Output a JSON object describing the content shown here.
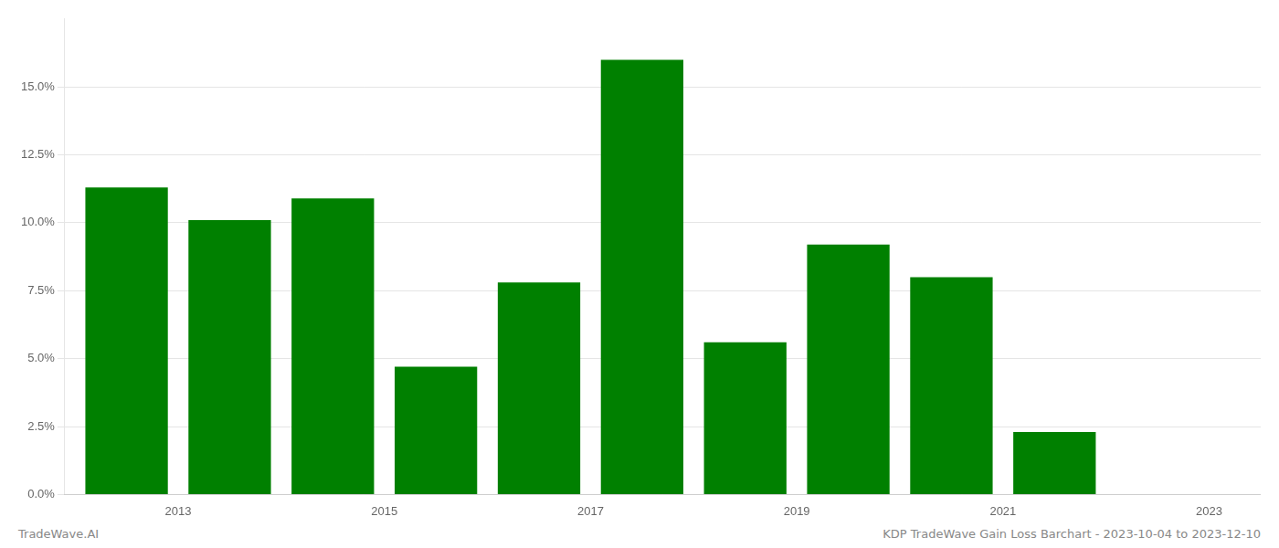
{
  "chart_data": {
    "type": "bar",
    "x": [
      2013,
      2014,
      2015,
      2016,
      2017,
      2018,
      2019,
      2020,
      2021,
      2022,
      2023
    ],
    "values": [
      0.113,
      0.101,
      0.109,
      0.047,
      0.078,
      0.16,
      0.056,
      0.092,
      0.08,
      0.023,
      0.0
    ],
    "color": "#008000",
    "xlim": [
      2012.4,
      2024.0
    ],
    "xticks": [
      {
        "value": 2013.5,
        "label": "2013"
      },
      {
        "value": 2015.5,
        "label": "2015"
      },
      {
        "value": 2017.5,
        "label": "2017"
      },
      {
        "value": 2019.5,
        "label": "2019"
      },
      {
        "value": 2021.5,
        "label": "2021"
      },
      {
        "value": 2023.5,
        "label": "2023"
      }
    ],
    "ylim": [
      0,
      0.175
    ],
    "yticks": [
      {
        "value": 0.0,
        "label": "0.0%"
      },
      {
        "value": 0.025,
        "label": "2.5%"
      },
      {
        "value": 0.05,
        "label": "5.0%"
      },
      {
        "value": 0.075,
        "label": "7.5%"
      },
      {
        "value": 0.1,
        "label": "10.0%"
      },
      {
        "value": 0.125,
        "label": "12.5%"
      },
      {
        "value": 0.15,
        "label": "15.0%"
      }
    ],
    "grid": true,
    "annotations": [
      "TradeWave.AI",
      "KDP TradeWave Gain Loss Barchart - 2023-10-04 to 2023-12-10"
    ]
  }
}
